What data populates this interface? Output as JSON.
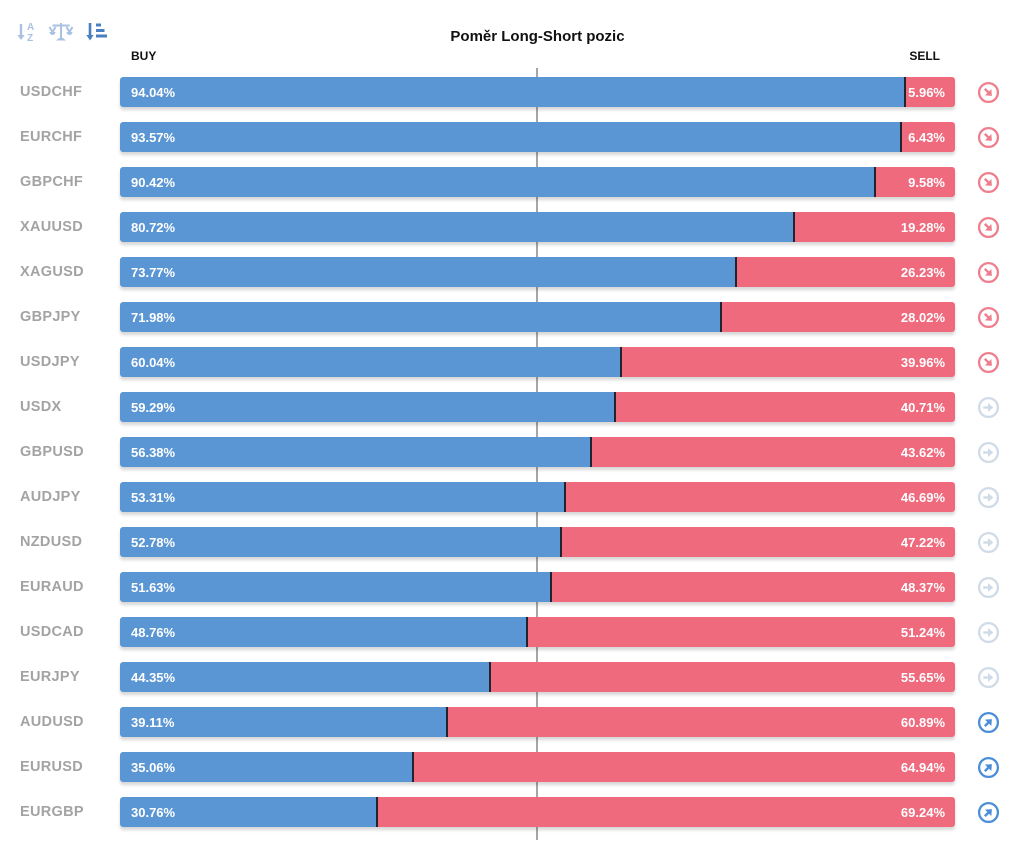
{
  "title": "Poměr Long-Short pozic",
  "columns": {
    "buy": "BUY",
    "sell": "SELL"
  },
  "toolbar": {
    "icons": [
      {
        "name": "sort-alphabetical-icon",
        "state": "inactive"
      },
      {
        "name": "balance-scale-icon",
        "state": "inactive"
      },
      {
        "name": "sort-amount-icon",
        "state": "active"
      }
    ],
    "inactive_color": "#a9c2e2",
    "active_color": "#4a7fc0"
  },
  "colors": {
    "buy_bar": "#5a96d4",
    "sell_bar": "#ef6a7d",
    "bar_separator": "#23232e",
    "center_line": "#a6a6a6",
    "pair_label": "#a3a3a3",
    "trend_down": "#ef7e8d",
    "trend_neutral": "#cfdbe7",
    "trend_up": "#4a8ed8"
  },
  "chart_data": {
    "type": "bar",
    "orientation": "horizontal",
    "stacked": true,
    "title": "Poměr Long-Short pozic",
    "xlabel": "",
    "ylabel": "",
    "xlim": [
      0,
      100
    ],
    "midline_at": 50,
    "legend_position": "top",
    "legend": [
      "BUY",
      "SELL"
    ],
    "categories": [
      "USDCHF",
      "EURCHF",
      "GBPCHF",
      "XAUUSD",
      "XAGUSD",
      "GBPJPY",
      "USDJPY",
      "USDX",
      "GBPUSD",
      "AUDJPY",
      "NZDUSD",
      "EURAUD",
      "USDCAD",
      "EURJPY",
      "AUDUSD",
      "EURUSD",
      "EURGBP"
    ],
    "series": [
      {
        "name": "BUY",
        "color": "#5a96d4",
        "values": [
          94.04,
          93.57,
          90.42,
          80.72,
          73.77,
          71.98,
          60.04,
          59.29,
          56.38,
          53.31,
          52.78,
          51.63,
          48.76,
          44.35,
          39.11,
          35.06,
          30.76
        ]
      },
      {
        "name": "SELL",
        "color": "#ef6a7d",
        "values": [
          5.96,
          6.43,
          9.58,
          19.28,
          26.23,
          28.02,
          39.96,
          40.71,
          43.62,
          46.69,
          47.22,
          48.37,
          51.24,
          55.65,
          60.89,
          64.94,
          69.24
        ]
      }
    ],
    "trend_icons": [
      "down-right",
      "down-right",
      "down-right",
      "down-right",
      "down-right",
      "down-right",
      "down-right",
      "right",
      "right",
      "right",
      "right",
      "right",
      "right",
      "right",
      "up-right",
      "up-right",
      "up-right"
    ]
  }
}
